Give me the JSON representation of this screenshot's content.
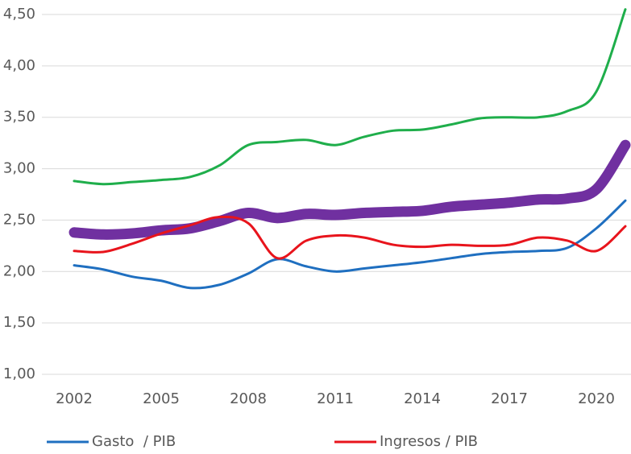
{
  "chart_data": {
    "type": "line",
    "x": [
      2002,
      2003,
      2004,
      2005,
      2006,
      2007,
      2008,
      2009,
      2010,
      2011,
      2012,
      2013,
      2014,
      2015,
      2016,
      2017,
      2018,
      2019,
      2020,
      2021
    ],
    "series": [
      {
        "color": "#1fae4b",
        "width": 3,
        "values": [
          2.88,
          2.85,
          2.87,
          2.89,
          2.92,
          3.03,
          3.23,
          3.26,
          3.28,
          3.23,
          3.31,
          3.37,
          3.38,
          3.43,
          3.49,
          3.5,
          3.5,
          3.56,
          3.75,
          4.55
        ]
      },
      {
        "color": "#7030a0",
        "width": 13,
        "values": [
          2.38,
          2.36,
          2.37,
          2.4,
          2.42,
          2.49,
          2.57,
          2.52,
          2.56,
          2.55,
          2.57,
          2.58,
          2.59,
          2.63,
          2.65,
          2.67,
          2.7,
          2.71,
          2.8,
          3.23
        ]
      },
      {
        "name": "Gasto  / PIB",
        "color": "#1f6fc0",
        "width": 3,
        "values": [
          2.06,
          2.02,
          1.95,
          1.91,
          1.84,
          1.87,
          1.98,
          2.12,
          2.05,
          2.0,
          2.03,
          2.06,
          2.09,
          2.13,
          2.17,
          2.19,
          2.2,
          2.23,
          2.42,
          2.69
        ]
      },
      {
        "name": "Ingresos / PIB",
        "color": "#e8141c",
        "width": 3,
        "values": [
          2.2,
          2.19,
          2.27,
          2.37,
          2.45,
          2.53,
          2.47,
          2.13,
          2.3,
          2.35,
          2.33,
          2.26,
          2.24,
          2.26,
          2.25,
          2.26,
          2.33,
          2.3,
          2.2,
          2.44
        ]
      }
    ],
    "xlim": [
      2002,
      2021
    ],
    "xticks": [
      2002,
      2005,
      2008,
      2011,
      2014,
      2017,
      2020
    ],
    "ylim": [
      1.0,
      4.5
    ],
    "yticks": [
      {
        "value": 1.0,
        "label": "1,00"
      },
      {
        "value": 1.5,
        "label": "1,50"
      },
      {
        "value": 2.0,
        "label": "2,00"
      },
      {
        "value": 2.5,
        "label": "2,50"
      },
      {
        "value": 3.0,
        "label": "3,00"
      },
      {
        "value": 3.5,
        "label": "3,50"
      },
      {
        "value": 4.0,
        "label": "4,00"
      },
      {
        "value": 4.5,
        "label": "4,50"
      }
    ],
    "grid": true
  }
}
